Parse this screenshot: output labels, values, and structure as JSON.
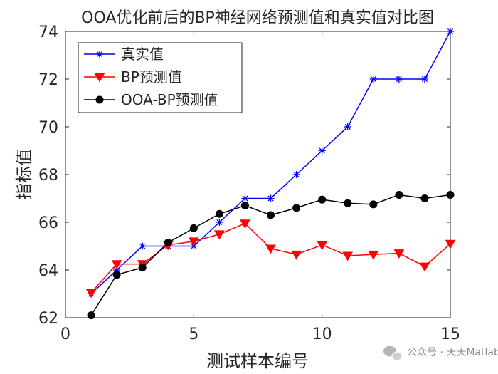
{
  "chart_data": {
    "type": "line",
    "title": "OOA优化前后的BP神经网络预测值和真实值对比图",
    "xlabel": "测试样本编号",
    "ylabel": "指标值",
    "xlim": [
      0,
      15
    ],
    "ylim": [
      62,
      74
    ],
    "xticks": [
      0,
      5,
      10,
      15
    ],
    "yticks": [
      62,
      64,
      66,
      68,
      70,
      72,
      74
    ],
    "grid": false,
    "legend_position": "top-left",
    "x": [
      1,
      2,
      3,
      4,
      5,
      6,
      7,
      8,
      9,
      10,
      11,
      12,
      13,
      14,
      15
    ],
    "series": [
      {
        "name": "真实值",
        "color": "#0000ff",
        "marker": "asterisk",
        "values": [
          63,
          64,
          65,
          65,
          65,
          66,
          67,
          67,
          68,
          69,
          70,
          72,
          72,
          72,
          74
        ]
      },
      {
        "name": "BP预测值",
        "color": "#ff0000",
        "marker": "triangle-down",
        "values": [
          63.05,
          64.25,
          64.25,
          65.05,
          65.2,
          65.5,
          65.95,
          64.9,
          64.65,
          65.05,
          64.6,
          64.65,
          64.7,
          64.15,
          65.1
        ]
      },
      {
        "name": "OOA-BP预测值",
        "color": "#000000",
        "marker": "circle",
        "values": [
          62.1,
          63.8,
          64.1,
          65.15,
          65.75,
          66.35,
          66.7,
          66.3,
          66.6,
          66.95,
          66.8,
          66.75,
          67.15,
          67.0,
          67.15
        ]
      }
    ]
  },
  "watermark": {
    "text": "公众号 · 天天Matlab",
    "icon": "wechat-icon"
  }
}
